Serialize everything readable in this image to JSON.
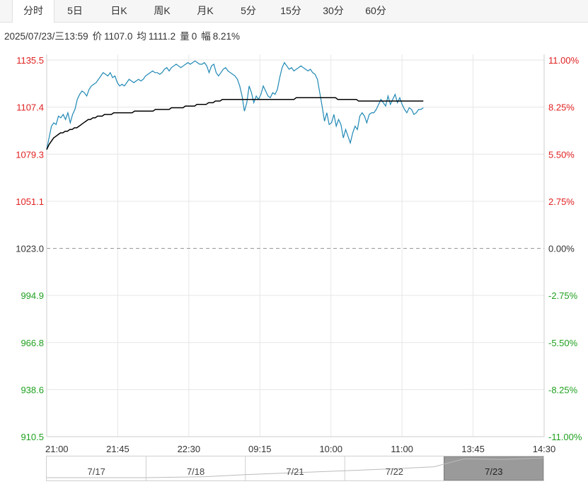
{
  "tabs": [
    "分时",
    "5日",
    "日K",
    "周K",
    "月K",
    "5分",
    "15分",
    "30分",
    "60分"
  ],
  "active_tab": 0,
  "info": {
    "datetime": "2025/07/23/三13:59",
    "price_label": "价",
    "price": "1107.0",
    "avg_label": "均",
    "avg": "1111.2",
    "vol_label": "量",
    "vol": "0",
    "chg_label": "幅",
    "chg": "8.21%"
  },
  "colors": {
    "price_line": "#1f88b5",
    "avg_line": "#000000",
    "up": "#e02020",
    "down": "#20a020",
    "flat": "#333333",
    "grid": "#e6e6e6"
  },
  "chart_data": {
    "type": "line",
    "prev_close": 1023.0,
    "ylim": [
      910.5,
      1135.5
    ],
    "y_ticks": [
      "1135.5",
      "1107.4",
      "1079.3",
      "1051.1",
      "1023.0",
      "994.9",
      "966.8",
      "938.6",
      "910.5"
    ],
    "y_ticks_right": [
      "11.00%",
      "8.25%",
      "5.50%",
      "2.75%",
      "0.00%",
      "-2.75%",
      "-5.50%",
      "-8.25%",
      "-11.00%"
    ],
    "x_ticks": [
      "21:00",
      "21:45",
      "22:30",
      "09:15",
      "10:00",
      "11:00",
      "13:45",
      "14:30"
    ],
    "series": [
      {
        "values": [
          1082,
          1089,
          1096,
          1098,
          1097,
          1102,
          1101,
          1103,
          1100,
          1104,
          1098,
          1103,
          1106,
          1112,
          1115,
          1117,
          1116,
          1114,
          1118,
          1120,
          1121,
          1122,
          1124,
          1126,
          1128,
          1127,
          1126,
          1128,
          1125,
          1126,
          1122,
          1120,
          1121,
          1120,
          1122,
          1124,
          1123,
          1122,
          1123,
          1124,
          1123,
          1124,
          1126,
          1127,
          1128,
          1129,
          1128,
          1128,
          1127,
          1128,
          1130,
          1131,
          1129,
          1131,
          1132,
          1133,
          1132,
          1131,
          1132,
          1133,
          1134,
          1133,
          1134,
          1135,
          1134,
          1133,
          1133,
          1134,
          1132,
          1128,
          1132,
          1133,
          1128,
          1126,
          1128,
          1130,
          1131,
          1129,
          1128,
          1127,
          1126,
          1124,
          1120,
          1114,
          1105,
          1110,
          1120,
          1116,
          1110,
          1114,
          1112,
          1115,
          1120,
          1117,
          1114,
          1113,
          1116,
          1115,
          1118,
          1125,
          1131,
          1134,
          1132,
          1130,
          1131,
          1129,
          1130,
          1131,
          1132,
          1131,
          1130,
          1129,
          1130,
          1128,
          1127,
          1124,
          1116,
          1108,
          1099,
          1104,
          1097,
          1098,
          1103,
          1096,
          1100,
          1097,
          1089,
          1094,
          1090,
          1086,
          1092,
          1096,
          1094,
          1102,
          1104,
          1102,
          1098,
          1103,
          1104,
          1104,
          1106,
          1109,
          1112,
          1110,
          1108,
          1114,
          1109,
          1112,
          1115,
          1110,
          1113,
          1109,
          1106,
          1104,
          1107,
          1106,
          1103,
          1104,
          1106,
          1106,
          1107
        ]
      },
      {
        "values": [
          1082,
          1085,
          1087,
          1089,
          1090,
          1091,
          1092,
          1092,
          1093,
          1093,
          1094,
          1094,
          1095,
          1095,
          1096,
          1097,
          1098,
          1099,
          1100,
          1100,
          1101,
          1101,
          1102,
          1102,
          1102,
          1103,
          1103,
          1103,
          1103,
          1104,
          1104,
          1104,
          1104,
          1104,
          1104,
          1104,
          1104,
          1104,
          1105,
          1105,
          1105,
          1105,
          1105,
          1105,
          1105,
          1105,
          1105,
          1106,
          1106,
          1106,
          1106,
          1106,
          1106,
          1106,
          1107,
          1107,
          1107,
          1107,
          1107,
          1107,
          1108,
          1108,
          1108,
          1108,
          1108,
          1109,
          1109,
          1109,
          1109,
          1109,
          1110,
          1110,
          1110,
          1111,
          1111,
          1111,
          1112,
          1112,
          1112,
          1112,
          1112,
          1112,
          1112,
          1112,
          1112,
          1112,
          1112,
          1112,
          1112,
          1112,
          1112,
          1112,
          1112,
          1112,
          1112,
          1112,
          1112,
          1112,
          1112,
          1112,
          1112,
          1112,
          1112,
          1112,
          1112,
          1112,
          1112,
          1112,
          1113,
          1113,
          1113,
          1113,
          1113,
          1113,
          1113,
          1113,
          1113,
          1113,
          1113,
          1113,
          1113,
          1113,
          1113,
          1113,
          1113,
          1113,
          1112,
          1112,
          1112,
          1112,
          1112,
          1112,
          1112,
          1112,
          1112,
          1111,
          1111,
          1111,
          1111,
          1111,
          1111,
          1111,
          1111,
          1111,
          1111,
          1111,
          1111,
          1111,
          1111,
          1111,
          1111,
          1111,
          1111,
          1111,
          1111,
          1111,
          1111,
          1111,
          1111,
          1111,
          1111,
          1111,
          1111,
          1111
        ]
      }
    ],
    "grid": true
  },
  "navigator": {
    "labels": [
      "7/17",
      "7/18",
      "7/21",
      "7/22",
      "7/23"
    ],
    "selected": 4
  }
}
